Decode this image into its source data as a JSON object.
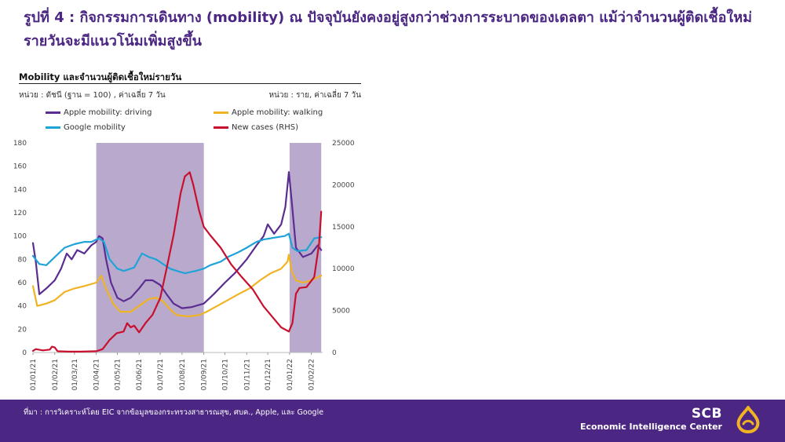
{
  "page": {
    "title": "รูปที่ 4 : กิจกรรมการเดินทาง (mobility) ณ ปัจจุบันยังคงอยู่สูงกว่าช่วงการระบาดของเดลตา แม้ว่าจำนวนผู้ติดเชื้อใหม่รายวันจะมีแนวโน้มเพิ่มสูงขึ้น"
  },
  "chart_data": {
    "type": "line",
    "title": "Mobility และจำนวนผู้ติดเชื้อใหม่รายวัน",
    "left_unit": "หน่วย : ดัชนี (ฐาน = 100) , ค่าเฉลี่ย 7 วัน",
    "right_unit": "หน่วย : ราย, ค่าเฉลี่ย 7 วัน",
    "legend": [
      {
        "label": "Apple mobility: driving",
        "color": "#5c2d91"
      },
      {
        "label": "Apple mobility: walking",
        "color": "#f0b323"
      },
      {
        "label": "Google mobility",
        "color": "#1fa3d9"
      },
      {
        "label": "New cases (RHS)",
        "color": "#c8102e"
      }
    ],
    "x_ticks": [
      "01/01/21",
      "01/02/21",
      "01/03/21",
      "01/04/21",
      "01/05/21",
      "01/06/21",
      "01/07/21",
      "01/08/21",
      "01/09/21",
      "01/10/21",
      "01/11/21",
      "01/12/21",
      "01/01/22",
      "01/02/22"
    ],
    "y_left": {
      "min": 0,
      "max": 180,
      "ticks": [
        0,
        20,
        40,
        60,
        80,
        100,
        120,
        140,
        160,
        180
      ]
    },
    "y_right": {
      "min": 0,
      "max": 25000,
      "ticks": [
        0,
        5000,
        10000,
        15000,
        20000,
        25000
      ]
    },
    "shaded_periods": [
      [
        "2021-04-01",
        "2021-09-01"
      ],
      [
        "2022-01-01",
        "2022-02-15"
      ]
    ],
    "shade_color": "#b9aacd",
    "series": [
      {
        "name": "Apple mobility: driving",
        "axis": "left",
        "color": "#5c2d91",
        "points": [
          [
            "2021-01-01",
            94
          ],
          [
            "2021-01-05",
            78
          ],
          [
            "2021-01-10",
            50
          ],
          [
            "2021-01-20",
            55
          ],
          [
            "2021-02-01",
            62
          ],
          [
            "2021-02-10",
            72
          ],
          [
            "2021-02-18",
            85
          ],
          [
            "2021-02-25",
            80
          ],
          [
            "2021-03-05",
            88
          ],
          [
            "2021-03-15",
            85
          ],
          [
            "2021-03-25",
            92
          ],
          [
            "2021-04-01",
            95
          ],
          [
            "2021-04-05",
            100
          ],
          [
            "2021-04-10",
            98
          ],
          [
            "2021-04-15",
            80
          ],
          [
            "2021-04-22",
            60
          ],
          [
            "2021-05-01",
            47
          ],
          [
            "2021-05-10",
            44
          ],
          [
            "2021-05-20",
            47
          ],
          [
            "2021-06-01",
            55
          ],
          [
            "2021-06-10",
            62
          ],
          [
            "2021-06-20",
            62
          ],
          [
            "2021-07-01",
            58
          ],
          [
            "2021-07-10",
            50
          ],
          [
            "2021-07-20",
            42
          ],
          [
            "2021-08-01",
            38
          ],
          [
            "2021-08-15",
            39
          ],
          [
            "2021-09-01",
            42
          ],
          [
            "2021-09-15",
            50
          ],
          [
            "2021-10-01",
            60
          ],
          [
            "2021-10-15",
            68
          ],
          [
            "2021-11-01",
            80
          ],
          [
            "2021-11-15",
            92
          ],
          [
            "2021-11-25",
            100
          ],
          [
            "2021-12-01",
            110
          ],
          [
            "2021-12-10",
            102
          ],
          [
            "2021-12-20",
            110
          ],
          [
            "2021-12-26",
            125
          ],
          [
            "2021-12-31",
            155
          ],
          [
            "2022-01-04",
            130
          ],
          [
            "2022-01-10",
            90
          ],
          [
            "2022-01-20",
            82
          ],
          [
            "2022-02-01",
            85
          ],
          [
            "2022-02-10",
            92
          ],
          [
            "2022-02-15",
            88
          ]
        ]
      },
      {
        "name": "Apple mobility: walking",
        "axis": "left",
        "color": "#f0b323",
        "points": [
          [
            "2021-01-01",
            57
          ],
          [
            "2021-01-07",
            40
          ],
          [
            "2021-01-20",
            42
          ],
          [
            "2021-02-01",
            45
          ],
          [
            "2021-02-15",
            52
          ],
          [
            "2021-03-01",
            55
          ],
          [
            "2021-03-15",
            57
          ],
          [
            "2021-04-01",
            60
          ],
          [
            "2021-04-08",
            66
          ],
          [
            "2021-04-15",
            55
          ],
          [
            "2021-04-25",
            42
          ],
          [
            "2021-05-05",
            35
          ],
          [
            "2021-05-20",
            35
          ],
          [
            "2021-06-01",
            40
          ],
          [
            "2021-06-15",
            46
          ],
          [
            "2021-06-25",
            47
          ],
          [
            "2021-07-05",
            44
          ],
          [
            "2021-07-15",
            37
          ],
          [
            "2021-07-25",
            32
          ],
          [
            "2021-08-10",
            31
          ],
          [
            "2021-08-25",
            32
          ],
          [
            "2021-09-05",
            35
          ],
          [
            "2021-09-20",
            40
          ],
          [
            "2021-10-05",
            45
          ],
          [
            "2021-10-20",
            50
          ],
          [
            "2021-11-05",
            55
          ],
          [
            "2021-11-20",
            62
          ],
          [
            "2021-12-05",
            68
          ],
          [
            "2021-12-20",
            72
          ],
          [
            "2021-12-29",
            78
          ],
          [
            "2021-12-31",
            84
          ],
          [
            "2022-01-04",
            70
          ],
          [
            "2022-01-10",
            62
          ],
          [
            "2022-01-20",
            60
          ],
          [
            "2022-02-01",
            62
          ],
          [
            "2022-02-15",
            66
          ]
        ]
      },
      {
        "name": "Google mobility",
        "axis": "left",
        "color": "#1fa3d9",
        "points": [
          [
            "2021-01-01",
            83
          ],
          [
            "2021-01-10",
            76
          ],
          [
            "2021-01-20",
            75
          ],
          [
            "2021-02-01",
            82
          ],
          [
            "2021-02-15",
            90
          ],
          [
            "2021-03-01",
            93
          ],
          [
            "2021-03-15",
            95
          ],
          [
            "2021-03-25",
            95
          ],
          [
            "2021-04-05",
            98
          ],
          [
            "2021-04-12",
            95
          ],
          [
            "2021-04-20",
            80
          ],
          [
            "2021-05-01",
            72
          ],
          [
            "2021-05-10",
            70
          ],
          [
            "2021-05-25",
            73
          ],
          [
            "2021-06-05",
            85
          ],
          [
            "2021-06-15",
            82
          ],
          [
            "2021-06-25",
            80
          ],
          [
            "2021-07-05",
            76
          ],
          [
            "2021-07-15",
            72
          ],
          [
            "2021-07-25",
            70
          ],
          [
            "2021-08-05",
            68
          ],
          [
            "2021-08-20",
            70
          ],
          [
            "2021-09-01",
            72
          ],
          [
            "2021-09-10",
            75
          ],
          [
            "2021-09-25",
            78
          ],
          [
            "2021-10-05",
            82
          ],
          [
            "2021-10-20",
            86
          ],
          [
            "2021-11-01",
            90
          ],
          [
            "2021-11-15",
            95
          ],
          [
            "2021-11-25",
            97
          ],
          [
            "2021-12-05",
            98
          ],
          [
            "2021-12-15",
            99
          ],
          [
            "2021-12-25",
            100
          ],
          [
            "2021-12-31",
            102
          ],
          [
            "2022-01-05",
            90
          ],
          [
            "2022-01-12",
            87
          ],
          [
            "2022-01-25",
            88
          ],
          [
            "2022-02-05",
            98
          ],
          [
            "2022-02-15",
            99
          ]
        ]
      },
      {
        "name": "New cases (RHS)",
        "axis": "right",
        "color": "#c8102e",
        "points": [
          [
            "2021-01-01",
            200
          ],
          [
            "2021-01-05",
            400
          ],
          [
            "2021-01-15",
            250
          ],
          [
            "2021-01-25",
            350
          ],
          [
            "2021-01-28",
            700
          ],
          [
            "2021-02-01",
            600
          ],
          [
            "2021-02-05",
            150
          ],
          [
            "2021-02-20",
            100
          ],
          [
            "2021-03-10",
            100
          ],
          [
            "2021-04-01",
            150
          ],
          [
            "2021-04-10",
            400
          ],
          [
            "2021-04-20",
            1500
          ],
          [
            "2021-04-30",
            2300
          ],
          [
            "2021-05-10",
            2500
          ],
          [
            "2021-05-15",
            3500
          ],
          [
            "2021-05-20",
            3000
          ],
          [
            "2021-05-25",
            3200
          ],
          [
            "2021-06-01",
            2400
          ],
          [
            "2021-06-10",
            3500
          ],
          [
            "2021-06-20",
            4500
          ],
          [
            "2021-07-01",
            6500
          ],
          [
            "2021-07-10",
            10000
          ],
          [
            "2021-07-20",
            14000
          ],
          [
            "2021-07-30",
            19000
          ],
          [
            "2021-08-05",
            21000
          ],
          [
            "2021-08-12",
            21500
          ],
          [
            "2021-08-17",
            20000
          ],
          [
            "2021-08-25",
            17000
          ],
          [
            "2021-09-01",
            15000
          ],
          [
            "2021-09-10",
            14000
          ],
          [
            "2021-09-25",
            12500
          ],
          [
            "2021-10-10",
            10500
          ],
          [
            "2021-10-25",
            9000
          ],
          [
            "2021-11-10",
            7500
          ],
          [
            "2021-11-25",
            5500
          ],
          [
            "2021-12-10",
            4000
          ],
          [
            "2021-12-20",
            3000
          ],
          [
            "2021-12-31",
            2500
          ],
          [
            "2022-01-05",
            3500
          ],
          [
            "2022-01-10",
            7000
          ],
          [
            "2022-01-15",
            7700
          ],
          [
            "2022-01-25",
            7800
          ],
          [
            "2022-02-05",
            9000
          ],
          [
            "2022-02-12",
            13000
          ],
          [
            "2022-02-15",
            16800
          ]
        ]
      }
    ]
  },
  "footer": {
    "source": "ที่มา : การวิเคราะห์โดย EIC จากข้อมูลของกระทรวงสาธารณสุข, ศบค., Apple, และ Google",
    "brand": "SCB",
    "brand_sub": "Economic Intelligence Center"
  }
}
